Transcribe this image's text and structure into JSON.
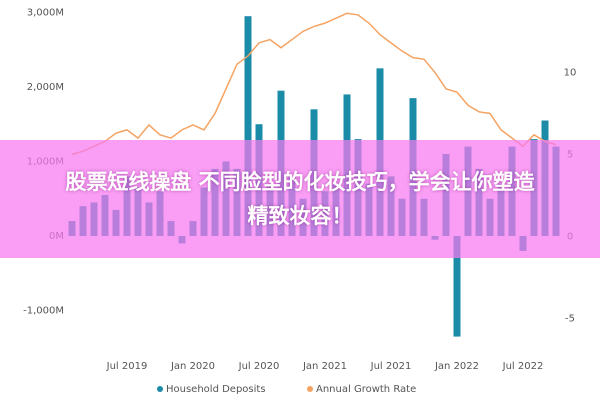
{
  "chart_data": {
    "type": "bar-line",
    "categories": [
      null,
      null,
      null,
      null,
      null,
      "Jul 2019",
      null,
      null,
      null,
      null,
      null,
      "Jan 2020",
      null,
      null,
      null,
      null,
      null,
      "Jul 2020",
      null,
      null,
      null,
      null,
      null,
      "Jan 2021",
      null,
      null,
      null,
      null,
      null,
      "Jul 2021",
      null,
      null,
      null,
      null,
      null,
      "Jan 2022",
      null,
      null,
      null,
      null,
      null,
      "Jul 2022",
      null,
      null,
      null
    ],
    "series": [
      {
        "name": "Household Deposits",
        "color": "#1a8ca8",
        "type": "bar",
        "values": [
          200,
          400,
          450,
          550,
          350,
          800,
          650,
          450,
          600,
          200,
          -100,
          200,
          650,
          900,
          1000,
          900,
          2950,
          1500,
          700,
          1950,
          800,
          500,
          1700,
          600,
          700,
          1900,
          1300,
          700,
          2250,
          800,
          500,
          1850,
          500,
          -50,
          1100,
          -1350,
          1200,
          900,
          500,
          700,
          1200,
          -200,
          1300,
          1550,
          1200
        ]
      },
      {
        "name": "Annual Growth Rate",
        "color": "#f5a362",
        "type": "line",
        "axis": "y2",
        "values": [
          5.0,
          5.2,
          5.5,
          5.8,
          6.3,
          6.5,
          6.0,
          6.8,
          6.2,
          6.0,
          6.5,
          6.8,
          6.5,
          7.5,
          9.0,
          10.5,
          11.0,
          11.8,
          12.0,
          11.5,
          12.0,
          12.5,
          12.8,
          13.0,
          13.3,
          13.6,
          13.5,
          13.0,
          12.3,
          11.8,
          11.3,
          10.9,
          10.8,
          10.0,
          9.0,
          8.8,
          8.0,
          7.6,
          7.5,
          6.5,
          6.0,
          5.5,
          6.2,
          5.8,
          5.6
        ]
      }
    ],
    "ylim": [
      -1463,
      3033
    ],
    "yticks": [
      {
        "value": -1000,
        "label": "-1,000M"
      },
      {
        "value": 0,
        "label": "0M"
      },
      {
        "value": 1000,
        "label": "1,000M"
      },
      {
        "value": 2000,
        "label": "2,000M"
      },
      {
        "value": 3000,
        "label": "3,000M"
      }
    ],
    "y2lim": [
      -6.6,
      13.8
    ],
    "y2ticks": [
      -5,
      0,
      5,
      10
    ],
    "legend": "bottom"
  },
  "banner": {
    "lines": [
      "股票短线操盘 不同脸型的化妆技巧，学会让你塑造",
      "精致妆容！"
    ]
  }
}
